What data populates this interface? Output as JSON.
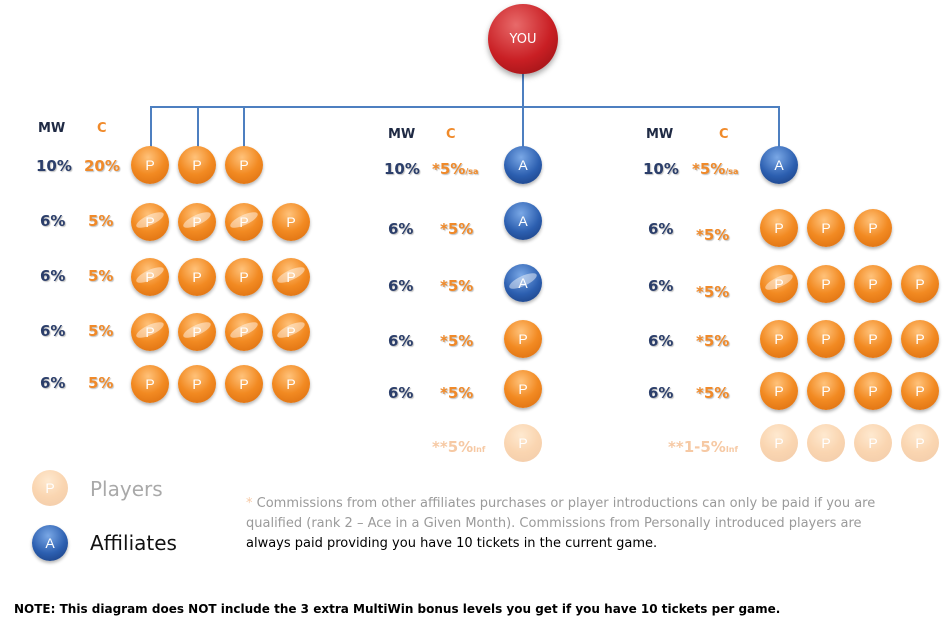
{
  "top": {
    "label": "YOU"
  },
  "columns": [
    {
      "header_mw": "MW",
      "header_c": "C",
      "rows": [
        {
          "mw": "10%",
          "c": "20%",
          "balls": [
            "P",
            "P",
            "P"
          ]
        },
        {
          "mw": "6%",
          "c": "5%",
          "balls": [
            "P",
            "P",
            "P",
            "P"
          ]
        },
        {
          "mw": "6%",
          "c": "5%",
          "balls": [
            "P",
            "P",
            "P",
            "P"
          ]
        },
        {
          "mw": "6%",
          "c": "5%",
          "balls": [
            "P",
            "P",
            "P",
            "P"
          ]
        },
        {
          "mw": "6%",
          "c": "5%",
          "balls": [
            "P",
            "P",
            "P",
            "P"
          ]
        }
      ]
    },
    {
      "header_mw": "MW",
      "header_c": "C",
      "rows": [
        {
          "mw": "10%",
          "c": "*5%",
          "c_sub": "/sa",
          "balls": [
            "A"
          ]
        },
        {
          "mw": "6%",
          "c": "*5%",
          "balls": [
            "A"
          ]
        },
        {
          "mw": "6%",
          "c": "*5%",
          "balls": [
            "A"
          ]
        },
        {
          "mw": "6%",
          "c": "*5%",
          "balls": [
            "P"
          ]
        },
        {
          "mw": "6%",
          "c": "*5%",
          "balls": [
            "P"
          ]
        },
        {
          "mw": "",
          "c": "**5%",
          "c_sub": "Inf",
          "balls": [
            "P"
          ],
          "faded": true
        }
      ]
    },
    {
      "header_mw": "MW",
      "header_c": "C",
      "rows": [
        {
          "mw": "10%",
          "c": "*5%",
          "c_sub": "/sa",
          "balls": [
            "A"
          ]
        },
        {
          "mw": "6%",
          "c": "*5%",
          "balls": [
            "P",
            "P",
            "P"
          ]
        },
        {
          "mw": "6%",
          "c": "*5%",
          "balls": [
            "P",
            "P",
            "P",
            "P"
          ]
        },
        {
          "mw": "6%",
          "c": "*5%",
          "balls": [
            "P",
            "P",
            "P",
            "P"
          ]
        },
        {
          "mw": "6%",
          "c": "*5%",
          "balls": [
            "P",
            "P",
            "P",
            "P"
          ]
        },
        {
          "mw": "",
          "c": "**1-5%",
          "c_sub": "Inf",
          "balls": [
            "P",
            "P",
            "P",
            "P"
          ],
          "faded": true
        }
      ]
    }
  ],
  "legend": {
    "players_icon": "P",
    "players_label": "Players",
    "affiliates_icon": "A",
    "affiliates_label": "Affiliates"
  },
  "note": {
    "star": "*",
    "line1": "Commissions from other affiliates purchases or player  introductions can only be paid if you are",
    "line2": "qualified (rank 2 – Ace in a Given Month). Commissions from Personally introduced players are",
    "line3": "always paid providing you have 10 tickets in the current game."
  },
  "footnote": "NOTE: This diagram does NOT include the 3 extra MultiWin bonus levels you get if you have 10 tickets per game.",
  "colors": {
    "player": "#f28a22",
    "affiliate": "#2c5fb0",
    "you": "#c91f24",
    "connector": "#4d7fc0"
  }
}
